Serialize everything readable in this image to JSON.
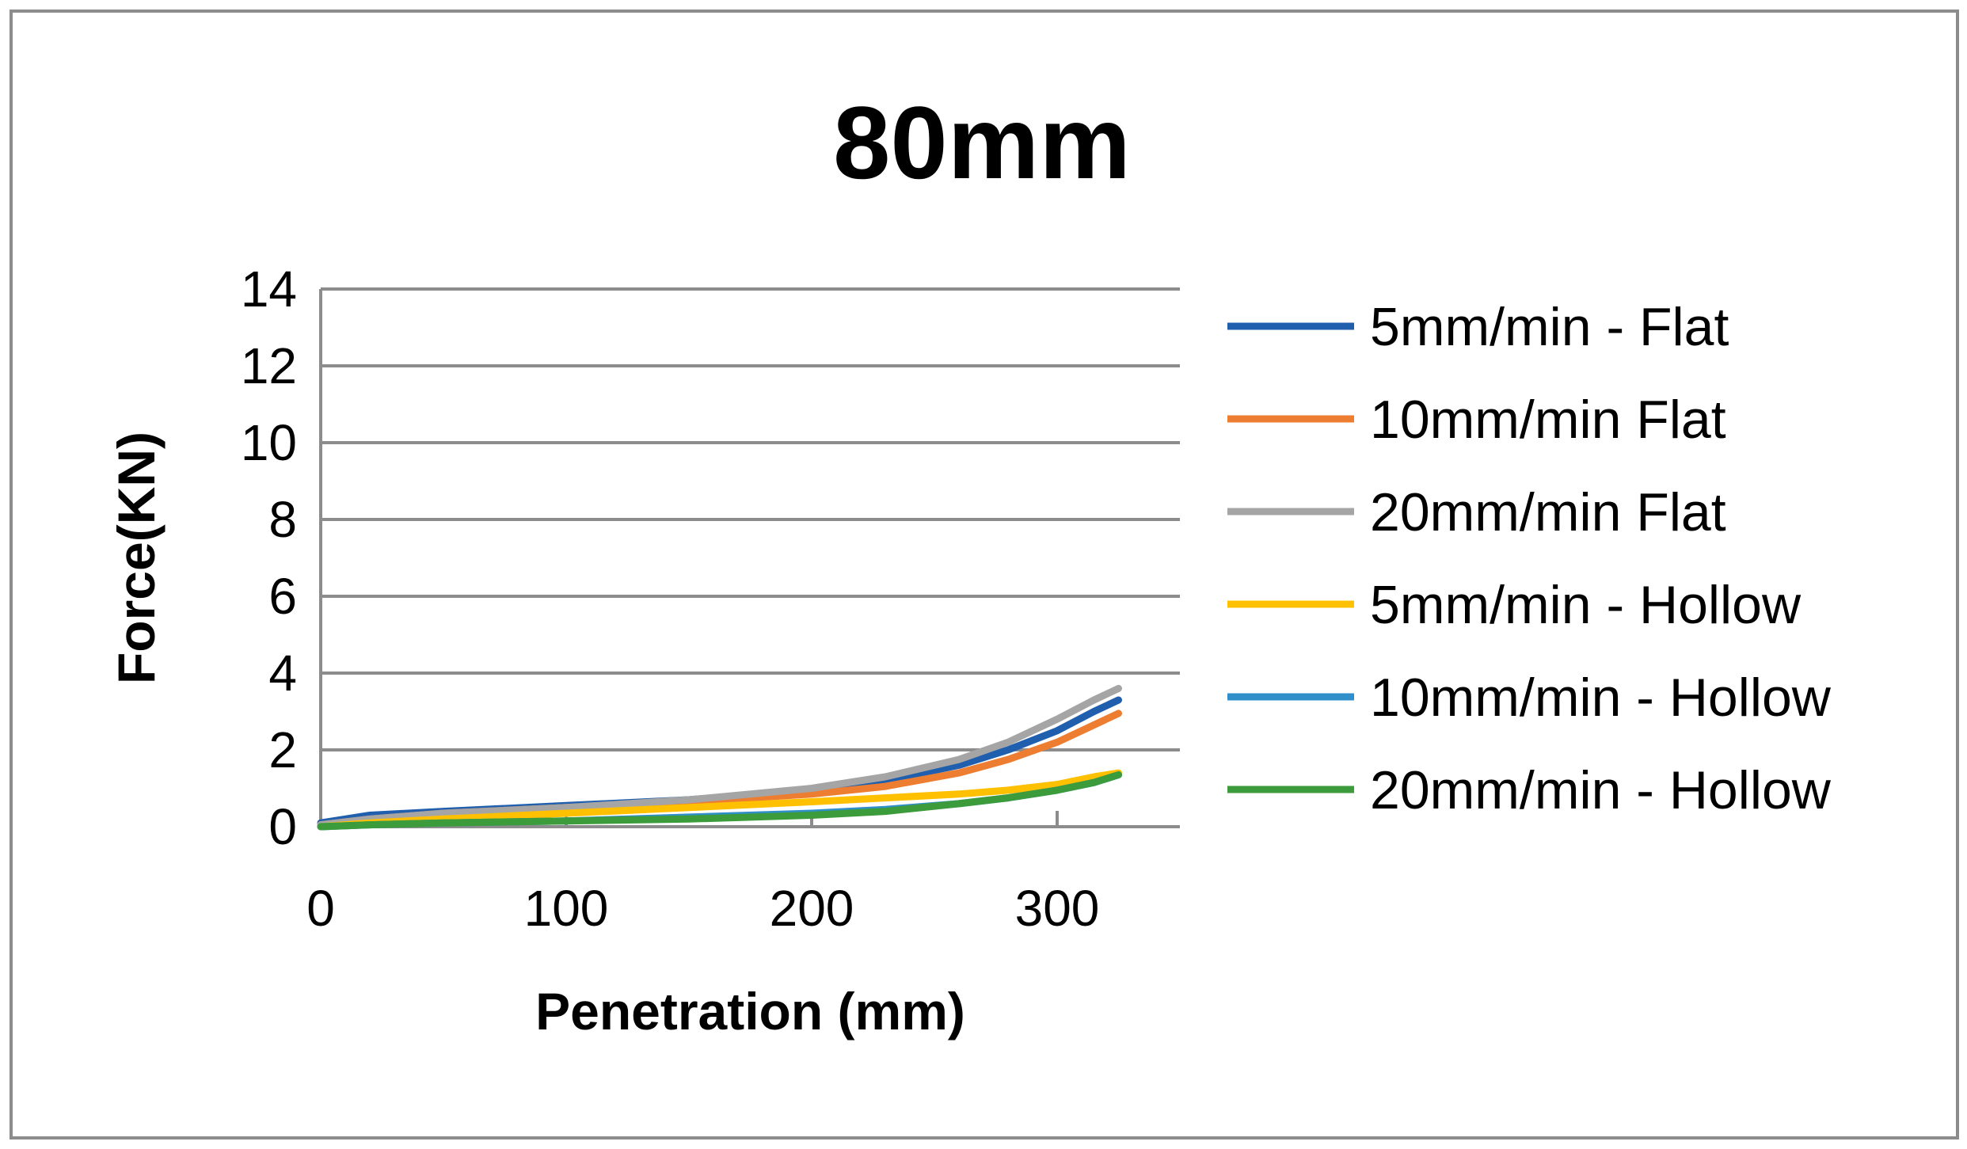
{
  "chart_data": {
    "type": "line",
    "title": "80mm",
    "xlabel": "Penetration (mm)",
    "ylabel": "Force(KN)",
    "xlim": [
      0,
      350
    ],
    "ylim": [
      0,
      14
    ],
    "xticks": [
      0,
      100,
      200,
      300
    ],
    "yticks": [
      0,
      2,
      4,
      6,
      8,
      10,
      12,
      14
    ],
    "grid": "horizontal",
    "legend_position": "right",
    "series": [
      {
        "name": "5mm/min - Flat",
        "color": "#1F5FAE",
        "x": [
          0,
          20,
          50,
          100,
          150,
          200,
          230,
          260,
          280,
          300,
          315,
          325
        ],
        "y": [
          0.1,
          0.3,
          0.4,
          0.55,
          0.7,
          0.95,
          1.2,
          1.6,
          2.0,
          2.5,
          3.0,
          3.3
        ]
      },
      {
        "name": "10mm/min Flat",
        "color": "#ED7D31",
        "x": [
          0,
          20,
          50,
          100,
          150,
          200,
          230,
          260,
          280,
          300,
          315,
          325
        ],
        "y": [
          0.05,
          0.2,
          0.35,
          0.5,
          0.65,
          0.85,
          1.05,
          1.4,
          1.75,
          2.2,
          2.65,
          2.95
        ]
      },
      {
        "name": "20mm/min Flat",
        "color": "#A5A5A5",
        "x": [
          0,
          20,
          50,
          100,
          150,
          200,
          230,
          260,
          280,
          300,
          315,
          325
        ],
        "y": [
          0.05,
          0.2,
          0.35,
          0.5,
          0.7,
          1.0,
          1.3,
          1.75,
          2.2,
          2.8,
          3.3,
          3.6
        ]
      },
      {
        "name": "5mm/min - Hollow",
        "color": "#FFC000",
        "x": [
          0,
          20,
          50,
          100,
          150,
          200,
          230,
          260,
          280,
          300,
          315,
          325
        ],
        "y": [
          0.0,
          0.1,
          0.2,
          0.35,
          0.5,
          0.65,
          0.75,
          0.85,
          0.95,
          1.1,
          1.3,
          1.4
        ]
      },
      {
        "name": "10mm/min - Hollow",
        "color": "#2E8FC9",
        "x": [
          0,
          20,
          50,
          100,
          150,
          200,
          230,
          260,
          280,
          300,
          315,
          325
        ],
        "y": [
          0.0,
          0.05,
          0.1,
          0.15,
          0.25,
          0.35,
          0.45,
          0.6,
          0.75,
          0.95,
          1.15,
          1.35
        ]
      },
      {
        "name": "20mm/min - Hollow",
        "color": "#3C9B3A",
        "x": [
          0,
          20,
          50,
          100,
          150,
          200,
          230,
          260,
          280,
          300,
          315,
          325
        ],
        "y": [
          0.0,
          0.05,
          0.1,
          0.15,
          0.2,
          0.3,
          0.4,
          0.6,
          0.75,
          0.95,
          1.15,
          1.35
        ]
      }
    ]
  }
}
